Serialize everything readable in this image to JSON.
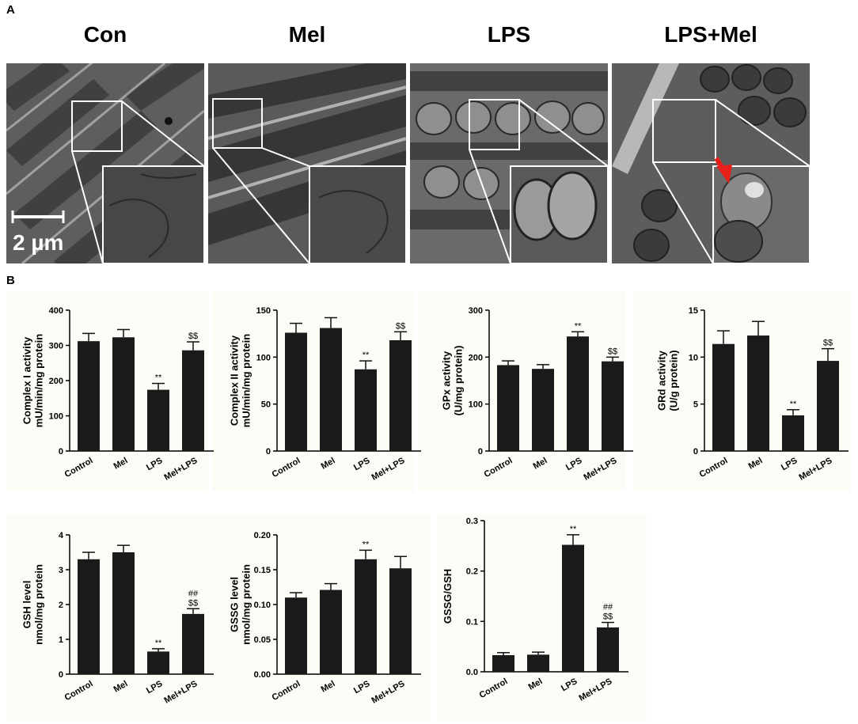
{
  "panel_a": {
    "letter": "A",
    "groups": [
      "Con",
      "Mel",
      "LPS",
      "LPS+Mel"
    ],
    "scale_bar": "2 µm",
    "arrow_color": "#e8201c"
  },
  "panel_b": {
    "letter": "B"
  },
  "chart_data": [
    {
      "type": "bar",
      "ylabel": [
        "Complex I activity",
        "mU/min/mg protein"
      ],
      "categories": [
        "Control",
        "Mel",
        "LPS",
        "Mel+LPS"
      ],
      "values": [
        312,
        323,
        174,
        286
      ],
      "errors": [
        22,
        22,
        18,
        24
      ],
      "annotations": [
        [],
        [],
        [
          "**"
        ],
        [
          "$$"
        ]
      ],
      "ylim": [
        0,
        400
      ],
      "ticks": [
        0,
        100,
        200,
        300,
        400
      ],
      "tick_labels": [
        "0",
        "100",
        "200",
        "300",
        "400"
      ]
    },
    {
      "type": "bar",
      "ylabel": [
        "Complex II activity",
        "mU/min/mg protein"
      ],
      "categories": [
        "Control",
        "Mel",
        "LPS",
        "Mel+LPS"
      ],
      "values": [
        126,
        131,
        87,
        118
      ],
      "errors": [
        10,
        11,
        9,
        9
      ],
      "annotations": [
        [],
        [],
        [
          "**"
        ],
        [
          "$$"
        ]
      ],
      "ylim": [
        0,
        150
      ],
      "ticks": [
        0,
        50,
        100,
        150
      ],
      "tick_labels": [
        "0",
        "50",
        "100",
        "150"
      ]
    },
    {
      "type": "bar",
      "ylabel": [
        "GPx activity",
        "(U/mg protein)"
      ],
      "categories": [
        "Control",
        "Mel",
        "LPS",
        "Mel+LPS"
      ],
      "values": [
        183,
        175,
        244,
        191
      ],
      "errors": [
        9,
        9,
        10,
        9
      ],
      "annotations": [
        [],
        [],
        [
          "**"
        ],
        [
          "$$"
        ]
      ],
      "ylim": [
        0,
        300
      ],
      "ticks": [
        0,
        100,
        200,
        300
      ],
      "tick_labels": [
        "0",
        "100",
        "200",
        "300"
      ]
    },
    {
      "type": "bar",
      "ylabel": [
        "GRd activity",
        "(U/g protein)"
      ],
      "categories": [
        "Control",
        "Mel",
        "LPS",
        "Mel+LPS"
      ],
      "values": [
        11.4,
        12.3,
        3.8,
        9.6
      ],
      "errors": [
        1.4,
        1.5,
        0.6,
        1.3
      ],
      "annotations": [
        [],
        [],
        [
          "**"
        ],
        [
          "$$"
        ]
      ],
      "ylim": [
        0,
        15
      ],
      "ticks": [
        0,
        5,
        10,
        15
      ],
      "tick_labels": [
        "0",
        "5",
        "10",
        "15"
      ]
    },
    {
      "type": "bar",
      "ylabel": [
        "GSH level",
        "nmol/mg protein"
      ],
      "categories": [
        "Control",
        "Mel",
        "LPS",
        "Mel+LPS"
      ],
      "values": [
        3.3,
        3.5,
        0.65,
        1.73
      ],
      "errors": [
        0.2,
        0.2,
        0.08,
        0.15
      ],
      "annotations": [
        [],
        [],
        [
          "**"
        ],
        [
          "##",
          "$$"
        ]
      ],
      "ylim": [
        0,
        4
      ],
      "ticks": [
        0,
        1,
        2,
        3,
        4
      ],
      "tick_labels": [
        "0",
        "1",
        "2",
        "3",
        "4"
      ]
    },
    {
      "type": "bar",
      "ylabel": [
        "GSSG level",
        "nmol/mg protein"
      ],
      "categories": [
        "Control",
        "Mel",
        "LPS",
        "Mel+LPS"
      ],
      "values": [
        0.11,
        0.121,
        0.165,
        0.152
      ],
      "errors": [
        0.007,
        0.009,
        0.013,
        0.017
      ],
      "annotations": [
        [],
        [],
        [
          "**"
        ],
        []
      ],
      "ylim": [
        0,
        0.2
      ],
      "ticks": [
        0,
        0.05,
        0.1,
        0.15,
        0.2
      ],
      "tick_labels": [
        "0.00",
        "0.05",
        "0.10",
        "0.15",
        "0.20"
      ]
    },
    {
      "type": "bar",
      "ylabel": [
        "GSSG/GSH"
      ],
      "categories": [
        "Control",
        "Mel",
        "LPS",
        "Mel+LPS"
      ],
      "values": [
        0.033,
        0.034,
        0.252,
        0.088
      ],
      "errors": [
        0.005,
        0.005,
        0.02,
        0.01
      ],
      "annotations": [
        [],
        [],
        [
          "**"
        ],
        [
          "##",
          "$$"
        ]
      ],
      "ylim": [
        0,
        0.3
      ],
      "ticks": [
        0,
        0.1,
        0.2,
        0.3
      ],
      "tick_labels": [
        "0.0",
        "0.1",
        "0.2",
        "0.3"
      ]
    }
  ]
}
